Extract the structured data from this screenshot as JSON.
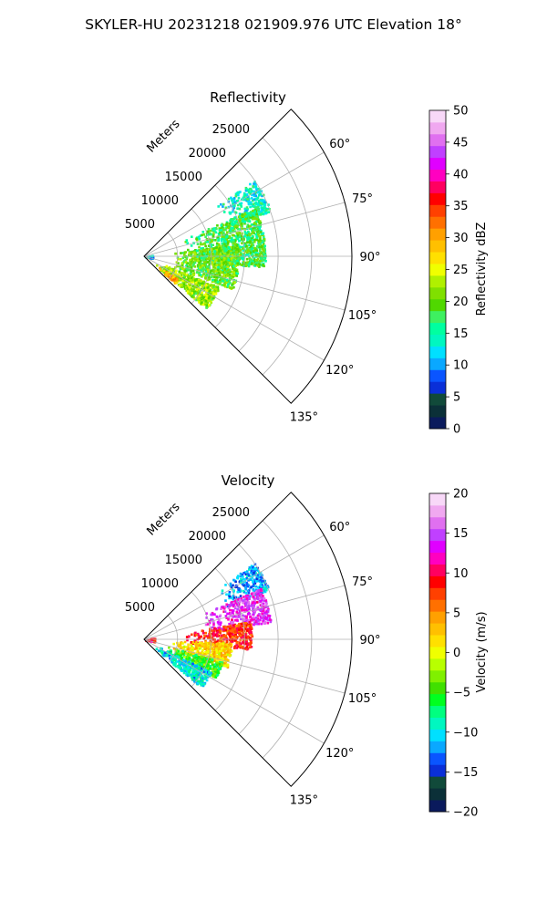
{
  "figure": {
    "suptitle": "SKYLER-HU  20231218  021909.976 UTC Elevation 18°"
  },
  "chart_data": [
    {
      "type": "heatmap",
      "title": "Reflectivity",
      "radial_label": "Meters",
      "radial_ticks": [
        5000,
        10000,
        15000,
        20000,
        25000
      ],
      "radial_tick_labels": [
        "5000",
        "10000",
        "15000",
        "20000",
        "25000"
      ],
      "rlim": [
        0,
        31000
      ],
      "azimuth_ticks": [
        60,
        75,
        90,
        105,
        120,
        135
      ],
      "azimuth_tick_labels": [
        "60°",
        "75°",
        "90°",
        "105°",
        "120°",
        "135°"
      ],
      "azimuth_range_deg": [
        45,
        135
      ],
      "grid": true,
      "colorbar": {
        "label": "Reflectivity dBZ",
        "range": [
          0,
          50
        ],
        "ticks": [
          0,
          5,
          10,
          15,
          20,
          25,
          30,
          35,
          40,
          45,
          50
        ],
        "tick_labels": [
          "0",
          "5",
          "10",
          "15",
          "20",
          "25",
          "30",
          "35",
          "40",
          "45",
          "50"
        ],
        "colors": [
          "#0a1a5c",
          "#0b3038",
          "#114a3a",
          "#0a2fd8",
          "#0a55ff",
          "#0aa8ff",
          "#00e0ff",
          "#00f7c0",
          "#00ffa0",
          "#3ef060",
          "#50d800",
          "#80e000",
          "#b0f000",
          "#f0ff00",
          "#ffe000",
          "#ffc000",
          "#ffa000",
          "#ff7000",
          "#ff4000",
          "#ff0000",
          "#ff0060",
          "#ff00c0",
          "#e000ff",
          "#c040ff",
          "#e070f0",
          "#f0a8f0",
          "#f8d8f8"
        ]
      },
      "field": [
        {
          "az_range": [
            55,
            70
          ],
          "r_range": [
            13000,
            20000
          ],
          "dbz": 14
        },
        {
          "az_range": [
            66,
            95
          ],
          "r_range": [
            6000,
            18000
          ],
          "dbz": 18
        },
        {
          "az_range": [
            82,
            110
          ],
          "r_range": [
            4000,
            14000
          ],
          "dbz": 20
        },
        {
          "az_range": [
            112,
            130
          ],
          "r_range": [
            2000,
            12000
          ],
          "dbz": 22
        },
        {
          "az_range": [
            124,
            131
          ],
          "r_range": [
            2500,
            6000
          ],
          "dbz": 30
        },
        {
          "az_range": [
            80,
            100
          ],
          "r_range": [
            0,
            1200
          ],
          "dbz": 12
        }
      ]
    },
    {
      "type": "heatmap",
      "title": "Velocity",
      "radial_label": "Meters",
      "radial_ticks": [
        5000,
        10000,
        15000,
        20000,
        25000
      ],
      "radial_tick_labels": [
        "5000",
        "10000",
        "15000",
        "20000",
        "25000"
      ],
      "rlim": [
        0,
        31000
      ],
      "azimuth_ticks": [
        60,
        75,
        90,
        105,
        120,
        135
      ],
      "azimuth_tick_labels": [
        "60°",
        "75°",
        "90°",
        "105°",
        "120°",
        "135°"
      ],
      "azimuth_range_deg": [
        45,
        135
      ],
      "grid": true,
      "colorbar": {
        "label": "Velocity (m/s)",
        "range": [
          -20,
          20
        ],
        "ticks": [
          -20,
          -15,
          -10,
          -5,
          0,
          5,
          10,
          15,
          20
        ],
        "tick_labels": [
          "−20",
          "−15",
          "−10",
          "−5",
          "0",
          "5",
          "10",
          "15",
          "20"
        ],
        "colors": [
          "#0a1a5c",
          "#0b3038",
          "#114a3a",
          "#0a2fd8",
          "#0a55ff",
          "#0aa8ff",
          "#00e0ff",
          "#00f7c0",
          "#00ff80",
          "#00ff20",
          "#40e000",
          "#80f000",
          "#b8ff00",
          "#f0ff00",
          "#ffe000",
          "#ffc000",
          "#ffa000",
          "#ff7000",
          "#ff4000",
          "#ff0000",
          "#ff0060",
          "#ff00c0",
          "#e000ff",
          "#c040ff",
          "#e070f0",
          "#f0a8f0",
          "#f8d8f8"
        ]
      },
      "field": [
        {
          "az_range": [
            55,
            68
          ],
          "r_range": [
            13000,
            20000
          ],
          "vel": -12
        },
        {
          "az_range": [
            66,
            82
          ],
          "r_range": [
            9000,
            19000
          ],
          "vel": 14
        },
        {
          "az_range": [
            80,
            95
          ],
          "r_range": [
            6000,
            16000
          ],
          "vel": 8
        },
        {
          "az_range": [
            92,
            108
          ],
          "r_range": [
            4000,
            13000
          ],
          "vel": 2
        },
        {
          "az_range": [
            106,
            118
          ],
          "r_range": [
            3000,
            12000
          ],
          "vel": -5
        },
        {
          "az_range": [
            116,
            130
          ],
          "r_range": [
            2000,
            11000
          ],
          "vel": -10
        },
        {
          "az_range": [
            80,
            100
          ],
          "r_range": [
            0,
            1500
          ],
          "vel": 10
        }
      ]
    }
  ]
}
